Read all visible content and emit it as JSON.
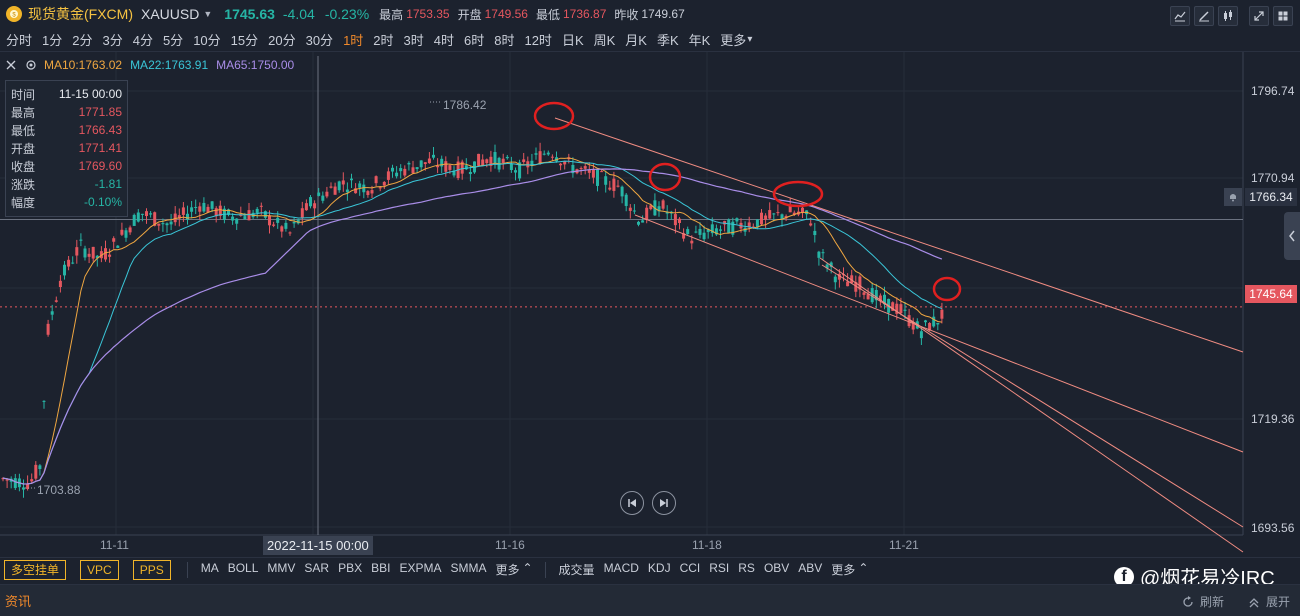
{
  "header": {
    "symbol_name": "现货黄金(FXCM)",
    "symbol_code": "XAUUSD",
    "price": "1745.63",
    "change": "-4.04",
    "change_pct": "-0.23%",
    "high_label": "最高",
    "high_value": "1753.35",
    "open_label": "开盘",
    "open_value": "1749.56",
    "low_label": "最低",
    "low_value": "1736.87",
    "prev_close_label": "昨收",
    "prev_close_value": "1749.67"
  },
  "periods": [
    "分时",
    "1分",
    "2分",
    "3分",
    "4分",
    "5分",
    "10分",
    "15分",
    "20分",
    "30分",
    "1时",
    "2时",
    "3时",
    "4时",
    "6时",
    "8时",
    "12时",
    "日K",
    "周K",
    "月K",
    "季K",
    "年K",
    "更多"
  ],
  "active_period": "1时",
  "ma": {
    "ma10": "MA10:1763.02",
    "ma22": "MA22:1763.91",
    "ma65": "MA65:1750.00"
  },
  "info": {
    "rows": [
      {
        "label": "时间",
        "value": "11-15 00:00"
      },
      {
        "label": "最高",
        "value": "1771.85"
      },
      {
        "label": "最低",
        "value": "1766.43"
      },
      {
        "label": "开盘",
        "value": "1771.41"
      },
      {
        "label": "收盘",
        "value": "1769.60"
      },
      {
        "label": "涨跌",
        "value": "-1.81"
      },
      {
        "label": "幅度",
        "value": "-0.10%"
      }
    ]
  },
  "price_axis": [
    "1796.74",
    "1770.94",
    "1719.36",
    "1693.56"
  ],
  "crosshair_price": "1766.34",
  "current_price_tag": "1745.64",
  "chart_annotations": {
    "high_mark": "1786.42",
    "low_mark": "1703.88"
  },
  "time_axis": [
    "11-11",
    "11-16",
    "11-18",
    "11-21"
  ],
  "crosshair_time": "2022-11-15 00:00",
  "bottom": {
    "buttons": [
      "多空挂单",
      "VPC",
      "PPS"
    ],
    "main_indicators": [
      "MA",
      "BOLL",
      "MMV",
      "SAR",
      "PBX",
      "BBI",
      "EXPMA",
      "SMMA",
      "更多"
    ],
    "sub_indicators": [
      "成交量",
      "MACD",
      "KDJ",
      "CCI",
      "RSI",
      "RS",
      "OBV",
      "ABV",
      "更多"
    ],
    "watermark": "@烟花易冷IRC"
  },
  "news": {
    "title": "资讯",
    "refresh": "刷新",
    "expand": "展开"
  },
  "colors": {
    "up": "#e5575f",
    "down": "#26b5a5",
    "ma10": "#f0a741",
    "ma22": "#3ac6d8",
    "ma65": "#a98de8",
    "trend": "#f08c82",
    "circle": "#e02020"
  },
  "icons": [
    "gold-coin-icon",
    "indicator-icon",
    "draw-icon",
    "candle-icon",
    "expand-icon",
    "settings-icon",
    "close-icon",
    "gear-icon",
    "bell-icon",
    "prev-icon",
    "next-icon",
    "facebook-icon",
    "refresh-icon",
    "expand-up-icon",
    "chevron-left-icon"
  ]
}
